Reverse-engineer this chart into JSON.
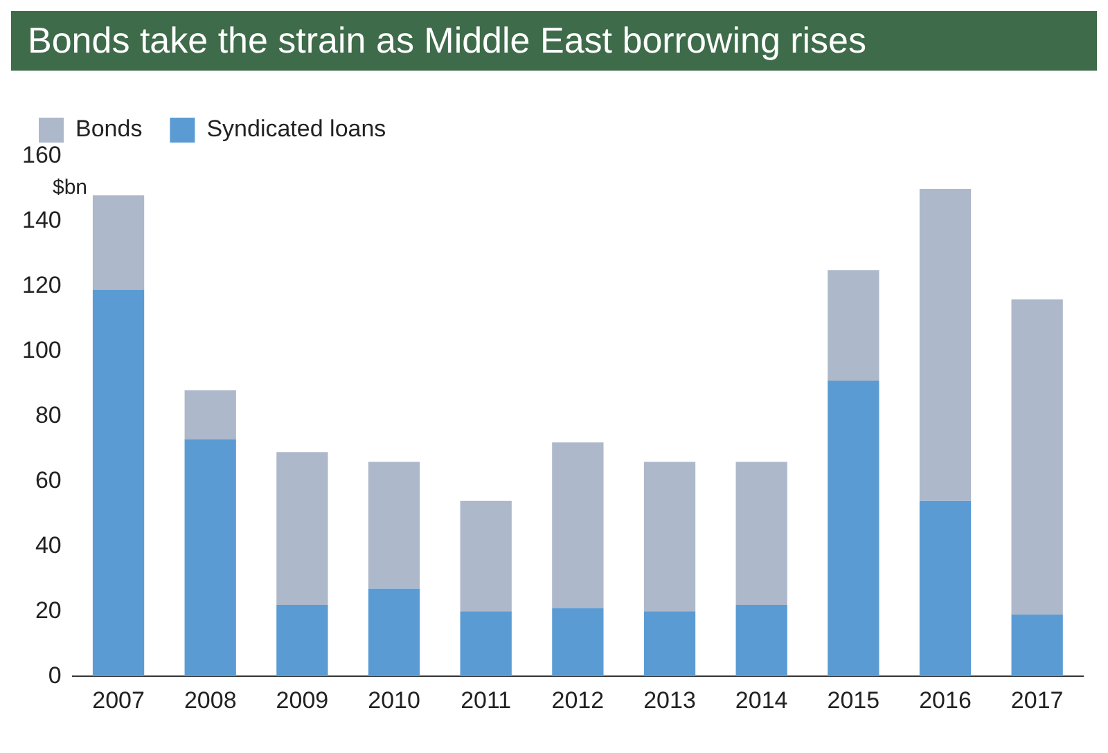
{
  "chart_data": {
    "type": "bar",
    "title": "Bonds take the strain as Middle East borrowing rises",
    "ylabel": "$bn",
    "categories": [
      "2007",
      "2008",
      "2009",
      "2010",
      "2011",
      "2012",
      "2013",
      "2014",
      "2015",
      "2016",
      "2017"
    ],
    "series": [
      {
        "name": "Syndicated loans",
        "color": "#5b9bd3",
        "values": [
          119,
          73,
          22,
          27,
          20,
          21,
          20,
          22,
          91,
          54,
          19
        ]
      },
      {
        "name": "Bonds",
        "color": "#adb8ca",
        "values": [
          29,
          15,
          47,
          39,
          34,
          51,
          46,
          44,
          34,
          96,
          97
        ]
      }
    ],
    "stacked": true,
    "ylim": [
      0,
      160
    ],
    "yticks": [
      0,
      20,
      40,
      60,
      80,
      100,
      120,
      140,
      160
    ],
    "grid": false,
    "legend": "top left"
  }
}
